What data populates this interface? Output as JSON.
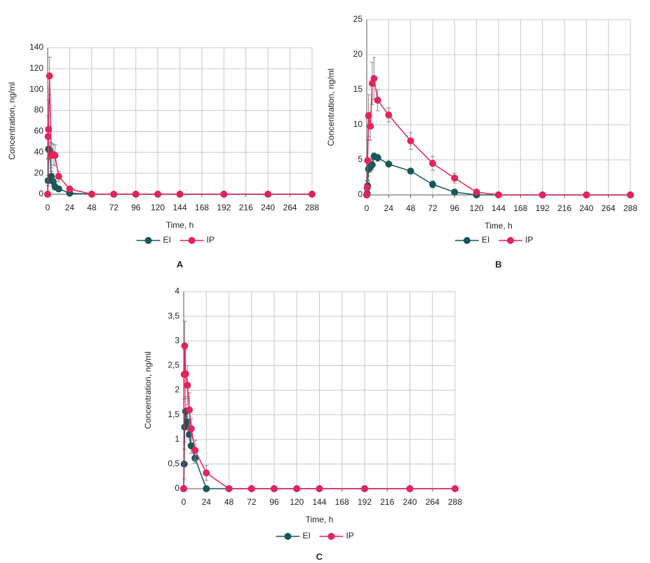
{
  "chart_data": [
    {
      "type": "line",
      "label": "A",
      "x_label": "Time, h",
      "y_label": "Concentration, ng/ml",
      "x": [
        0,
        0.5,
        1,
        2,
        4,
        6,
        8,
        12,
        24,
        48,
        72,
        96,
        120,
        144,
        192,
        240,
        288
      ],
      "xlim": [
        0,
        288
      ],
      "xticks": [
        0,
        24,
        48,
        72,
        96,
        120,
        144,
        168,
        192,
        216,
        240,
        264,
        288
      ],
      "ylim": [
        0,
        140
      ],
      "yticks": [
        0,
        20,
        40,
        60,
        80,
        100,
        120,
        140
      ],
      "grid": true,
      "legend": "bottom",
      "series": [
        {
          "name": "EI",
          "color": "#17585a",
          "values": [
            0,
            13,
            43,
            42,
            17,
            12,
            7,
            5,
            1,
            0,
            0,
            0,
            0,
            0,
            0,
            0,
            0
          ],
          "errors": [
            null,
            5,
            10,
            8,
            5,
            4,
            3,
            2,
            1,
            null,
            null,
            null,
            null,
            null,
            null,
            null,
            null
          ]
        },
        {
          "name": "IP",
          "color": "#e3245c",
          "values": [
            0,
            55,
            62,
            113,
            37,
            38,
            37,
            17,
            5,
            0,
            0,
            0,
            0,
            0,
            0,
            0,
            0
          ],
          "errors": [
            null,
            20,
            28,
            18,
            12,
            10,
            10,
            5,
            2,
            null,
            null,
            null,
            null,
            null,
            null,
            null,
            null
          ]
        }
      ]
    },
    {
      "type": "line",
      "label": "B",
      "x_label": "Time, h",
      "y_label": "Concentration, ng/ml",
      "x": [
        0,
        0.5,
        1,
        2,
        4,
        6,
        8,
        12,
        24,
        48,
        72,
        96,
        120,
        144,
        192,
        240,
        288
      ],
      "xlim": [
        0,
        288
      ],
      "xticks": [
        0,
        24,
        48,
        72,
        96,
        120,
        144,
        168,
        192,
        216,
        240,
        264,
        288
      ],
      "ylim": [
        0,
        25
      ],
      "yticks": [
        0,
        5,
        10,
        15,
        20,
        25
      ],
      "grid": true,
      "legend": "bottom",
      "series": [
        {
          "name": "EI",
          "color": "#17585a",
          "values": [
            0,
            0.2,
            1.3,
            3.7,
            4,
            4.3,
            5.5,
            5.3,
            4.4,
            3.4,
            1.5,
            0.4,
            0,
            0,
            0,
            0,
            0
          ],
          "errors": [
            null,
            0.3,
            0.8,
            1,
            0.8,
            0.8,
            0.5,
            0.5,
            0.3,
            0.3,
            0.5,
            0.3,
            null,
            null,
            null,
            null,
            null
          ]
        },
        {
          "name": "IP",
          "color": "#e3245c",
          "values": [
            0,
            1,
            4.9,
            11.3,
            9.8,
            15.9,
            16.6,
            13.5,
            11.4,
            7.7,
            4.5,
            2.4,
            0.4,
            0,
            0,
            0,
            0
          ],
          "errors": [
            null,
            1,
            3,
            3,
            2,
            3,
            3,
            1.5,
            1,
            1.2,
            1,
            0.7,
            0.3,
            null,
            null,
            null,
            null
          ]
        }
      ]
    },
    {
      "type": "line",
      "label": "C",
      "x_label": "Time, h",
      "y_label": "Concentration, ng/ml",
      "x": [
        0,
        0.5,
        1,
        2,
        4,
        6,
        8,
        12,
        24,
        48,
        72,
        96,
        120,
        144,
        192,
        240,
        288
      ],
      "xlim": [
        0,
        288
      ],
      "xticks": [
        0,
        24,
        48,
        72,
        96,
        120,
        144,
        168,
        192,
        216,
        240,
        264,
        288
      ],
      "ylim": [
        0,
        4
      ],
      "yticks": [
        0,
        {
          "value": 0.5,
          "label": "0,5"
        },
        1,
        {
          "value": 1.5,
          "label": "1,5"
        },
        2,
        {
          "value": 2.5,
          "label": "2,5"
        },
        3,
        {
          "value": 3.5,
          "label": "3,5"
        },
        4
      ],
      "grid": true,
      "legend": "bottom",
      "series": [
        {
          "name": "EI",
          "color": "#17585a",
          "values": [
            0,
            0.5,
            1.25,
            1.57,
            1.35,
            1.1,
            0.87,
            0.62,
            0,
            0,
            0,
            0,
            0,
            0,
            0,
            0,
            0
          ],
          "errors": [
            null,
            0.3,
            0.3,
            0.3,
            0.3,
            0.2,
            0.15,
            0.1,
            null,
            null,
            null,
            null,
            null,
            null,
            null,
            null,
            null
          ]
        },
        {
          "name": "IP",
          "color": "#e3245c",
          "values": [
            0,
            2.32,
            2.9,
            2.33,
            2.1,
            1.6,
            1.22,
            0.78,
            0.32,
            0,
            0,
            0,
            0,
            0,
            0,
            0,
            0
          ],
          "errors": [
            null,
            0.5,
            0.5,
            0.5,
            0.4,
            0.35,
            0.2,
            0.2,
            0.15,
            null,
            null,
            null,
            null,
            null,
            null,
            null,
            null
          ]
        }
      ]
    }
  ]
}
